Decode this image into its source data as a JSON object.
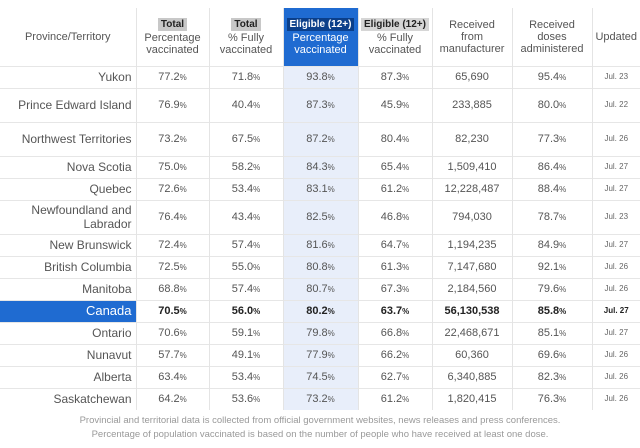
{
  "header": {
    "province": "Province/Territory",
    "cols": [
      {
        "tag": "Total",
        "line1": "Percentage",
        "line2": "vaccinated"
      },
      {
        "tag": "Total",
        "line1": "% Fully",
        "line2": "vaccinated"
      },
      {
        "tag": "Eligible (12+)",
        "line1": "Percentage",
        "line2": "vaccinated"
      },
      {
        "tag": "Eligible (12+)",
        "line1": "% Fully",
        "line2": "vaccinated"
      },
      {
        "tag": "",
        "line1": "Received",
        "line2": "from",
        "line3": "manufacturer"
      },
      {
        "tag": "",
        "line1": "Received",
        "line2": "doses",
        "line3": "administered"
      },
      {
        "tag": "",
        "line1": "Updated",
        "line2": ""
      }
    ]
  },
  "rows": [
    {
      "name": "Yukon",
      "v1": "77.2",
      "v2": "71.8",
      "v3": "93.8",
      "v4": "87.3",
      "recv": "65,690",
      "admin": "95.4",
      "upd": "Jul. 23"
    },
    {
      "name": "Prince Edward Island",
      "v1": "76.9",
      "v2": "40.4",
      "v3": "87.3",
      "v4": "45.9",
      "recv": "233,885",
      "admin": "80.0",
      "upd": "Jul. 22"
    },
    {
      "name": "Northwest Territories",
      "v1": "73.2",
      "v2": "67.5",
      "v3": "87.2",
      "v4": "80.4",
      "recv": "82,230",
      "admin": "77.3",
      "upd": "Jul. 26"
    },
    {
      "name": "Nova Scotia",
      "v1": "75.0",
      "v2": "58.2",
      "v3": "84.3",
      "v4": "65.4",
      "recv": "1,509,410",
      "admin": "86.4",
      "upd": "Jul. 27"
    },
    {
      "name": "Quebec",
      "v1": "72.6",
      "v2": "53.4",
      "v3": "83.1",
      "v4": "61.2",
      "recv": "12,228,487",
      "admin": "88.4",
      "upd": "Jul. 27"
    },
    {
      "name": "Newfoundland and Labrador",
      "v1": "76.4",
      "v2": "43.4",
      "v3": "82.5",
      "v4": "46.8",
      "recv": "794,030",
      "admin": "78.7",
      "upd": "Jul. 23"
    },
    {
      "name": "New Brunswick",
      "v1": "72.4",
      "v2": "57.4",
      "v3": "81.6",
      "v4": "64.7",
      "recv": "1,194,235",
      "admin": "84.9",
      "upd": "Jul. 27"
    },
    {
      "name": "British Columbia",
      "v1": "72.5",
      "v2": "55.0",
      "v3": "80.8",
      "v4": "61.3",
      "recv": "7,147,680",
      "admin": "92.1",
      "upd": "Jul. 26"
    },
    {
      "name": "Manitoba",
      "v1": "68.8",
      "v2": "57.4",
      "v3": "80.7",
      "v4": "67.3",
      "recv": "2,184,560",
      "admin": "79.6",
      "upd": "Jul. 26"
    },
    {
      "name": "Canada",
      "v1": "70.5",
      "v2": "56.0",
      "v3": "80.2",
      "v4": "63.7",
      "recv": "56,130,538",
      "admin": "85.8",
      "upd": "Jul. 27"
    },
    {
      "name": "Ontario",
      "v1": "70.6",
      "v2": "59.1",
      "v3": "79.8",
      "v4": "66.8",
      "recv": "22,468,671",
      "admin": "85.1",
      "upd": "Jul. 27"
    },
    {
      "name": "Nunavut",
      "v1": "57.7",
      "v2": "49.1",
      "v3": "77.9",
      "v4": "66.2",
      "recv": "60,360",
      "admin": "69.6",
      "upd": "Jul. 26"
    },
    {
      "name": "Alberta",
      "v1": "63.4",
      "v2": "53.4",
      "v3": "74.5",
      "v4": "62.7",
      "recv": "6,340,885",
      "admin": "82.3",
      "upd": "Jul. 26"
    },
    {
      "name": "Saskatchewan",
      "v1": "64.2",
      "v2": "53.6",
      "v3": "73.2",
      "v4": "61.2",
      "recv": "1,820,415",
      "admin": "76.3",
      "upd": "Jul. 26"
    }
  ],
  "pct_symbol": "%",
  "footnotes": [
    "Provincial and territorial data is collected from official government websites, news releases and press conferences.",
    "Percentage of population vaccinated is based on the number of people who have received at least one dose."
  ],
  "colors": {
    "highlight": "#1f6bd1",
    "highlight_light": "#e8eefa"
  }
}
